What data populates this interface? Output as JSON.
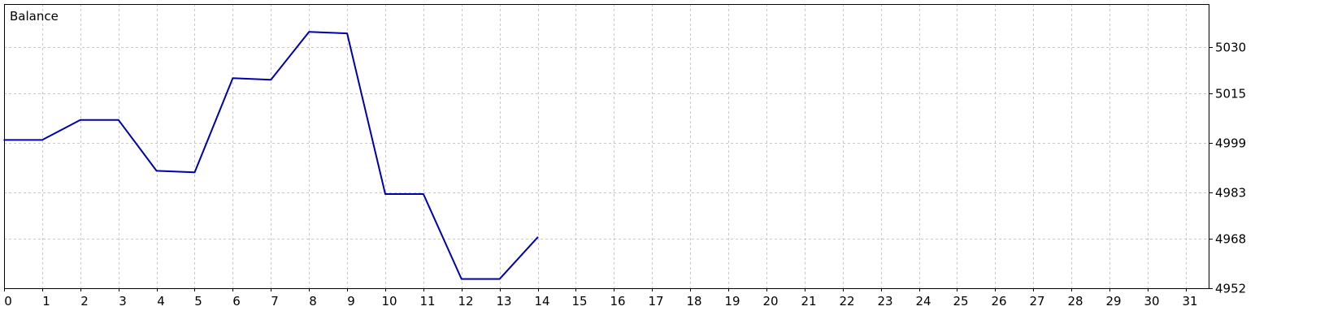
{
  "chart_data": {
    "type": "line",
    "title": "Balance",
    "xlabel": "",
    "ylabel": "",
    "x_ticks": [
      0,
      1,
      2,
      3,
      4,
      5,
      6,
      7,
      8,
      9,
      10,
      11,
      12,
      13,
      14,
      15,
      16,
      17,
      18,
      19,
      20,
      21,
      22,
      23,
      24,
      25,
      26,
      27,
      28,
      29,
      30,
      31
    ],
    "xlim": [
      0,
      31.6
    ],
    "y_ticks": [
      4952,
      4968,
      4983,
      4999,
      5015,
      5030
    ],
    "ylim": [
      4952,
      5044
    ],
    "grid": true,
    "series": [
      {
        "color": "#0000aa",
        "points": [
          [
            0,
            5000
          ],
          [
            1,
            5000
          ],
          [
            2,
            5006.5
          ],
          [
            3,
            5006.5
          ],
          [
            4,
            4990
          ],
          [
            5,
            4989.5
          ],
          [
            6,
            5020
          ],
          [
            7,
            5019.5
          ],
          [
            8,
            5035
          ],
          [
            9,
            5034.5
          ],
          [
            10,
            4982.5
          ],
          [
            11,
            4982.5
          ],
          [
            12,
            4955
          ],
          [
            13,
            4955
          ],
          [
            14,
            4968.5
          ]
        ]
      }
    ]
  }
}
